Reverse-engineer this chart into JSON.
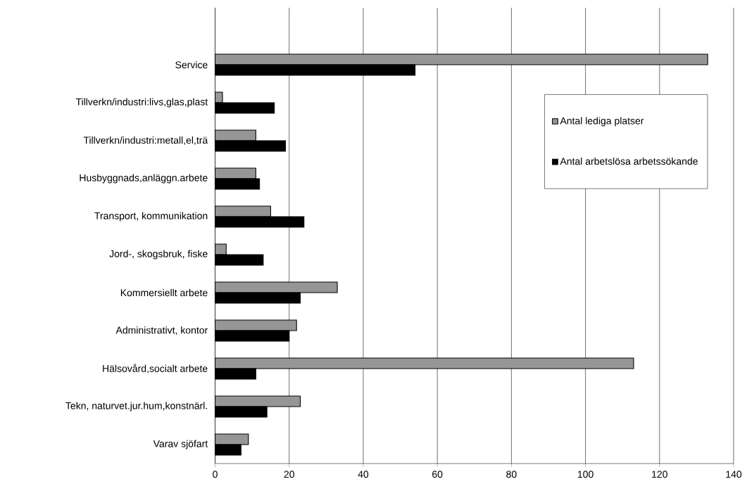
{
  "chart_data": {
    "type": "bar",
    "orientation": "horizontal",
    "categories": [
      null,
      "Service",
      "Tillverkn/industri:livs,glas,plast",
      "Tillverkn/industri:metall,el,trä",
      "Husbyggnads,anläggn.arbete",
      "Transport, kommunikation",
      "Jord-, skogsbruk, fiske",
      "Kommersiellt arbete",
      "Administrativt, kontor",
      "Hälsovård,socialt arbete",
      "Tekn, naturvet.jur.hum,konstnärl.",
      "Varav sjöfart"
    ],
    "series": [
      {
        "name": "Antal lediga platser",
        "color": "#969696",
        "values": [
          null,
          133,
          2,
          11,
          11,
          15,
          3,
          33,
          22,
          113,
          23,
          9
        ]
      },
      {
        "name": "Antal arbetslösa arbetssökande",
        "color": "#000000",
        "values": [
          null,
          54,
          16,
          19,
          12,
          24,
          13,
          23,
          20,
          11,
          14,
          7
        ]
      }
    ],
    "xlim": [
      0,
      140
    ],
    "xticks": [
      0,
      20,
      40,
      60,
      80,
      100,
      120,
      140
    ],
    "grid": "x",
    "legend": "top right"
  }
}
